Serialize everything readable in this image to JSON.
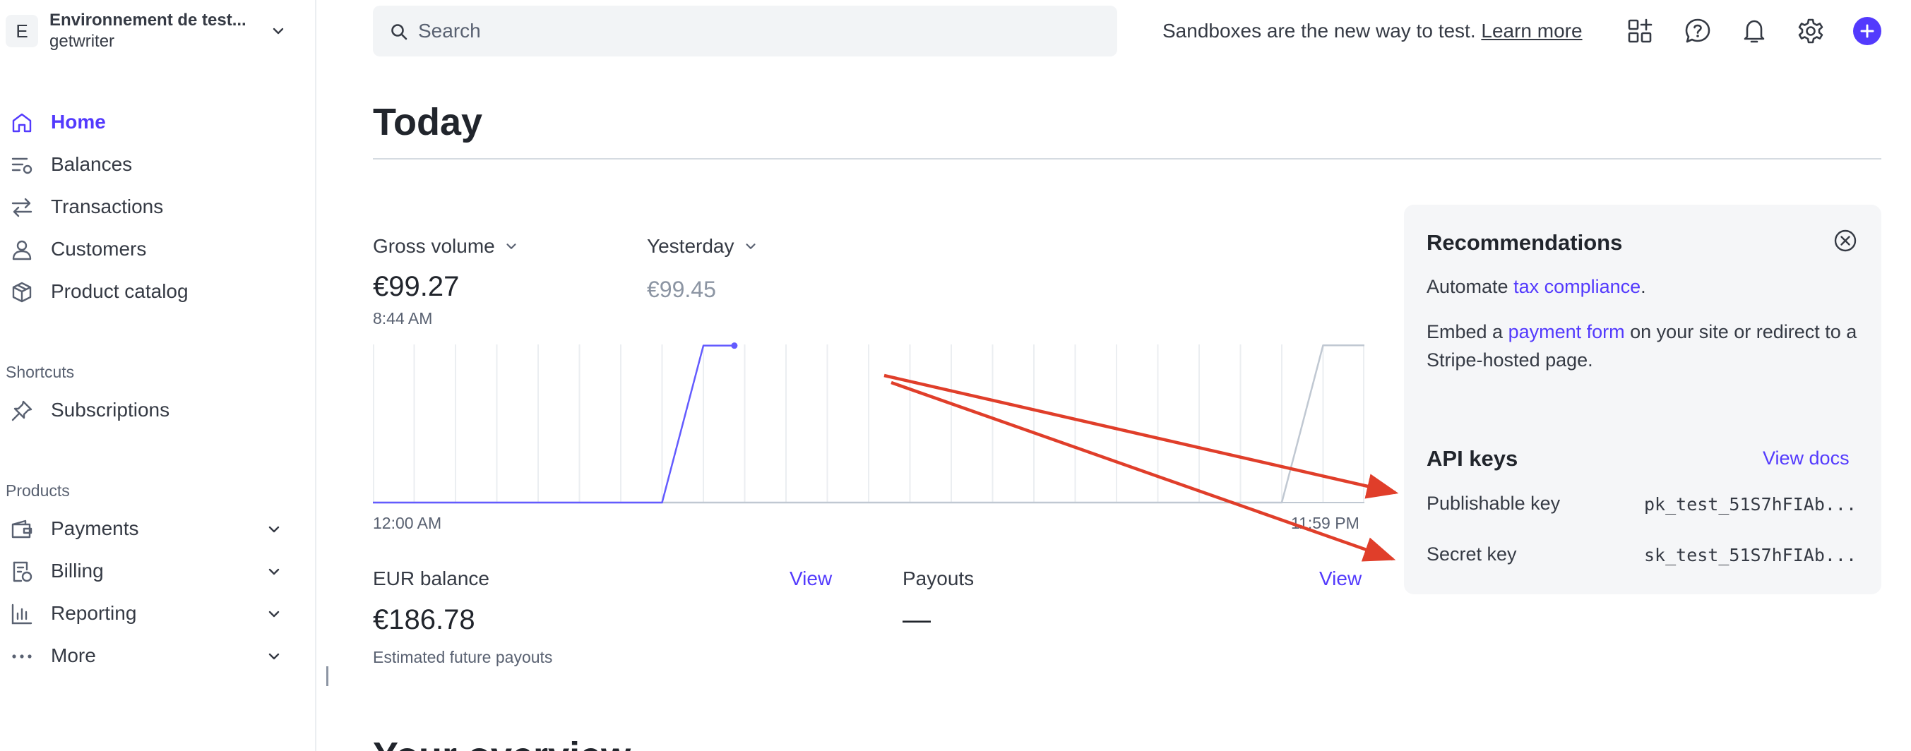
{
  "account": {
    "avatar_letter": "E",
    "name": "Environnement de test...",
    "subtitle": "getwriter"
  },
  "nav": {
    "items": [
      {
        "label": "Home"
      },
      {
        "label": "Balances"
      },
      {
        "label": "Transactions"
      },
      {
        "label": "Customers"
      },
      {
        "label": "Product catalog"
      }
    ],
    "shortcuts_title": "Shortcuts",
    "shortcuts": [
      {
        "label": "Subscriptions"
      }
    ],
    "products_title": "Products",
    "products": [
      {
        "label": "Payments"
      },
      {
        "label": "Billing"
      },
      {
        "label": "Reporting"
      },
      {
        "label": "More"
      }
    ]
  },
  "topbar": {
    "search_placeholder": "Search",
    "sandbox_text": "Sandboxes are the new way to test.",
    "learn_more": "Learn more"
  },
  "page": {
    "title": "Today",
    "next_heading_partial": "Your overview"
  },
  "today": {
    "gross_volume_label": "Gross volume",
    "gross_volume_value": "€99.27",
    "gross_volume_time": "8:44 AM",
    "compare_label": "Yesterday",
    "compare_value": "€99.45",
    "axis_start": "12:00 AM",
    "axis_end": "11:59 PM"
  },
  "chart_data": {
    "type": "line",
    "title": "Gross volume",
    "x_range": [
      "12:00 AM",
      "11:59 PM"
    ],
    "ylim": [
      0,
      100
    ],
    "grid_vertical": true,
    "series": [
      {
        "name": "Today",
        "color": "#635bff",
        "points": [
          [
            0,
            0
          ],
          [
            7,
            0
          ],
          [
            8,
            99.27
          ],
          [
            8.75,
            99.27
          ]
        ],
        "x_units": "hours"
      },
      {
        "name": "Yesterday",
        "color": "#c0c8d2",
        "points": [
          [
            0,
            0
          ],
          [
            22,
            0
          ],
          [
            23,
            99.45
          ],
          [
            24,
            99.45
          ]
        ],
        "x_units": "hours"
      }
    ]
  },
  "balances": {
    "eur_label": "EUR balance",
    "eur_link": "View",
    "eur_value": "€186.78",
    "eur_sub": "Estimated future payouts",
    "payouts_label": "Payouts",
    "payouts_link": "View",
    "payouts_value": "—"
  },
  "recommendations": {
    "title": "Recommendations",
    "line1_prefix": "Automate ",
    "line1_link": "tax compliance",
    "line1_suffix": ".",
    "line2_prefix": "Embed a ",
    "line2_link": "payment form",
    "line2_suffix": " on your site or redirect to a Stripe-hosted page."
  },
  "api_keys": {
    "title": "API keys",
    "docs_link": "View docs",
    "publishable_label": "Publishable key",
    "publishable_value": "pk_test_51S7hFIAb...",
    "secret_label": "Secret key",
    "secret_value": "sk_test_51S7hFIAb..."
  },
  "colors": {
    "accent": "#533afd",
    "annotation": "#e03e2a"
  }
}
